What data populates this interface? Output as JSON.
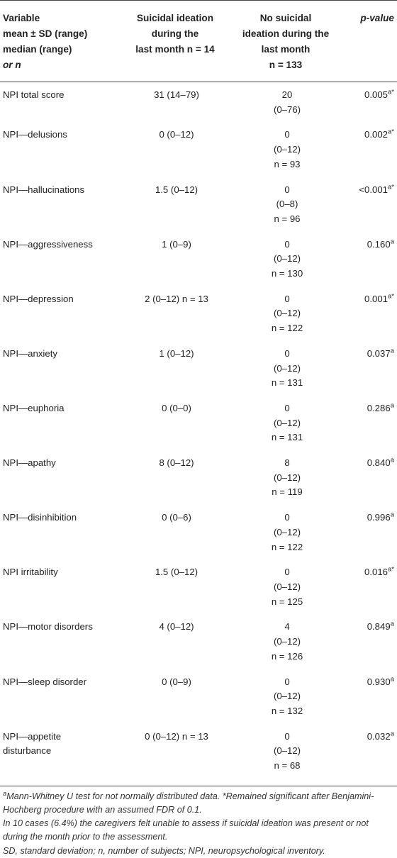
{
  "header": {
    "col1": [
      "Variable",
      "mean ± SD (range)",
      "median (range)",
      "or n"
    ],
    "col2": [
      "Suicidal ideation",
      "during the",
      "last month n = 14"
    ],
    "col3": [
      "No suicidal",
      "ideation during the",
      "last month",
      "n = 133"
    ],
    "col4": "p-value"
  },
  "rows": [
    {
      "label": "NPI total score",
      "si": "31 (14–79)",
      "no_si": [
        "20",
        "(0–76)"
      ],
      "p": "0.005",
      "p_sup": "a*"
    },
    {
      "label": "NPI—delusions",
      "si": "0 (0–12)",
      "no_si": [
        "0",
        "(0–12)",
        "n = 93"
      ],
      "p": "0.002",
      "p_sup": "a*"
    },
    {
      "label": "NPI—hallucinations",
      "si": "1.5 (0–12)",
      "no_si": [
        "0",
        "(0–8)",
        "n = 96"
      ],
      "p": "<0.001",
      "p_sup": "a*"
    },
    {
      "label": "NPI—aggressiveness",
      "si": "1 (0–9)",
      "no_si": [
        "0",
        "(0–12)",
        "n = 130"
      ],
      "p": "0.160",
      "p_sup": "a"
    },
    {
      "label": "NPI—depression",
      "si": "2 (0–12) n = 13",
      "no_si": [
        "0",
        "(0–12)",
        "n = 122"
      ],
      "p": "0.001",
      "p_sup": "a*"
    },
    {
      "label": "NPI—anxiety",
      "si": "1 (0–12)",
      "no_si": [
        "0",
        "(0–12)",
        "n = 131"
      ],
      "p": "0.037",
      "p_sup": "a"
    },
    {
      "label": "NPI—euphoria",
      "si": "0 (0–0)",
      "no_si": [
        "0",
        "(0–12)",
        "n = 131"
      ],
      "p": "0.286",
      "p_sup": "a"
    },
    {
      "label": "NPI—apathy",
      "si": "8 (0–12)",
      "no_si": [
        "8",
        "(0–12)",
        "n = 119"
      ],
      "p": "0.840",
      "p_sup": "a"
    },
    {
      "label": "NPI—disinhibition",
      "si": "0 (0–6)",
      "no_si": [
        "0",
        "(0–12)",
        "n = 122"
      ],
      "p": "0.996",
      "p_sup": "a"
    },
    {
      "label": "NPI irritability",
      "si": "1.5 (0–12)",
      "no_si": [
        "0",
        "(0–12)",
        "n = 125"
      ],
      "p": "0.016",
      "p_sup": "a*"
    },
    {
      "label": "NPI—motor disorders",
      "si": "4 (0–12)",
      "no_si": [
        "4",
        "(0–12)",
        "n = 126"
      ],
      "p": "0.849",
      "p_sup": "a"
    },
    {
      "label": "NPI—sleep disorder",
      "si": "0 (0–9)",
      "no_si": [
        "0",
        "(0–12)",
        "n = 132"
      ],
      "p": "0.930",
      "p_sup": "a"
    },
    {
      "label": [
        "NPI—appetite",
        "disturbance"
      ],
      "si": "0 (0–12) n = 13",
      "no_si": [
        "0",
        "(0–12)",
        "n = 68"
      ],
      "p": "0.032",
      "p_sup": "a"
    }
  ],
  "footnotes": {
    "a_sup": "a",
    "a_text": "Mann-Whitney U test for not normally distributed data. *Remained significant after Benjamini-Hochberg procedure with an assumed FDR of 0.1.",
    "note": "In 10 cases (6.4%) the caregivers felt unable to assess if suicidal ideation was present or not during the month prior to the assessment.",
    "abbrev": "SD, standard deviation; n, number of subjects; NPI, neuropsychological inventory."
  }
}
